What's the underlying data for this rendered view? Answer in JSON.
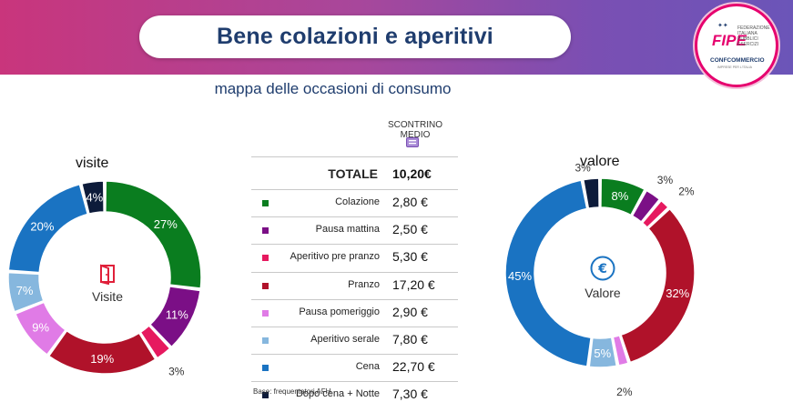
{
  "title": "Bene colazioni e aperitivi",
  "subtitle": "mappa delle occasioni di consumo",
  "logo": {
    "brand": "FIPE",
    "federation": "FEDERAZIONE ITALIANA PUBBLICI ESERCIZI",
    "org": "CONFCOMMERCIO",
    "org_sub": "IMPRESE PER L'ITALIA"
  },
  "table": {
    "header_line1": "SCONTRINO",
    "header_line2": "MEDIO",
    "total_label": "TOTALE",
    "total_value": "10,20€",
    "rows": [
      {
        "label": "Colazione",
        "value": "2,80 €"
      },
      {
        "label": "Pausa mattina",
        "value": "2,50 €"
      },
      {
        "label": "Aperitivo pre pranzo",
        "value": "5,30 €"
      },
      {
        "label": "Pranzo",
        "value": "17,20 €"
      },
      {
        "label": "Pausa pomeriggio",
        "value": "2,90 €"
      },
      {
        "label": "Aperitivo serale",
        "value": "7,80 €"
      },
      {
        "label": "Cena",
        "value": "22,70 €"
      },
      {
        "label": "Dopo cena + Notte",
        "value": "7,30 €"
      }
    ],
    "note": "Base: frequentatori AFH"
  },
  "colors": {
    "Colazione": "#0a7d1f",
    "Pausa mattina": "#7b0f86",
    "Aperitivo pre pranzo": "#e6195f",
    "Pranzo": "#b0122a",
    "Pausa pomeriggio": "#e07be6",
    "Aperitivo serale": "#86b7de",
    "Cena": "#1a73c2",
    "Dopo cena + Notte": "#0d1b3a"
  },
  "chart_data": [
    {
      "type": "pie",
      "title": "visite",
      "center_label": "Visite",
      "center_icon": "door-icon",
      "categories": [
        "Colazione",
        "Pausa mattina",
        "Aperitivo pre pranzo",
        "Pranzo",
        "Pausa pomeriggio",
        "Aperitivo serale",
        "Cena",
        "Dopo cena + Notte"
      ],
      "values": [
        27,
        11,
        3,
        19,
        9,
        7,
        20,
        4
      ],
      "labels": [
        "27%",
        "11%",
        "3%",
        "19%",
        "9%",
        "7%",
        "20%",
        "4%"
      ]
    },
    {
      "type": "pie",
      "title": "valore",
      "center_label": "Valore",
      "center_icon": "euro-icon",
      "categories": [
        "Colazione",
        "Pausa mattina",
        "Aperitivo pre pranzo",
        "Pranzo",
        "Pausa pomeriggio",
        "Aperitivo serale",
        "Cena",
        "Dopo cena + Notte"
      ],
      "values": [
        8,
        3,
        2,
        32,
        2,
        5,
        45,
        3
      ],
      "labels": [
        "8%",
        "3%",
        "2%",
        "32%",
        "2%",
        "5%",
        "45%",
        "3%"
      ]
    }
  ]
}
